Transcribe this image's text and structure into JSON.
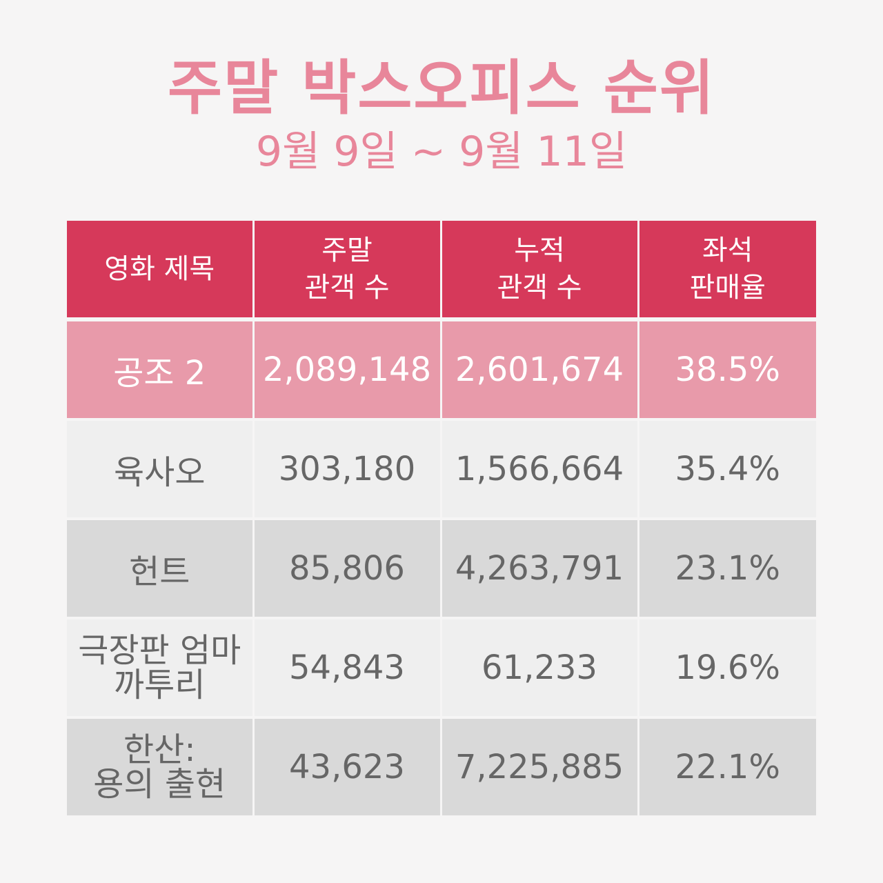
{
  "title": "주말 박스오피스 순위",
  "subtitle": "9월 9일 ~ 9월 11일",
  "table": {
    "headers": [
      {
        "line1": "영화 제목",
        "line2": ""
      },
      {
        "line1": "주말",
        "line2": "관객 수"
      },
      {
        "line1": "누적",
        "line2": "관객 수"
      },
      {
        "line1": "좌석",
        "line2": "판매율"
      }
    ],
    "rows": [
      {
        "title_line1": "공조 2",
        "title_line2": "",
        "weekend": "2,089,148",
        "cumulative": "2,601,674",
        "seat_rate": "38.5%"
      },
      {
        "title_line1": "육사오",
        "title_line2": "",
        "weekend": "303,180",
        "cumulative": "1,566,664",
        "seat_rate": "35.4%"
      },
      {
        "title_line1": "헌트",
        "title_line2": "",
        "weekend": "85,806",
        "cumulative": "4,263,791",
        "seat_rate": "23.1%"
      },
      {
        "title_line1": "극장판 엄마",
        "title_line2": "까투리",
        "weekend": "54,843",
        "cumulative": "61,233",
        "seat_rate": "19.6%"
      },
      {
        "title_line1": "한산:",
        "title_line2": "용의 출현",
        "weekend": "43,623",
        "cumulative": "7,225,885",
        "seat_rate": "22.1%"
      }
    ]
  },
  "colors": {
    "title": "#e8869a",
    "header_bg": "#d6395a",
    "highlight_row_bg": "#e89aaa",
    "light_row_bg": "#efefef",
    "dark_row_bg": "#d9d9d9",
    "page_bg": "#f6f5f5"
  }
}
